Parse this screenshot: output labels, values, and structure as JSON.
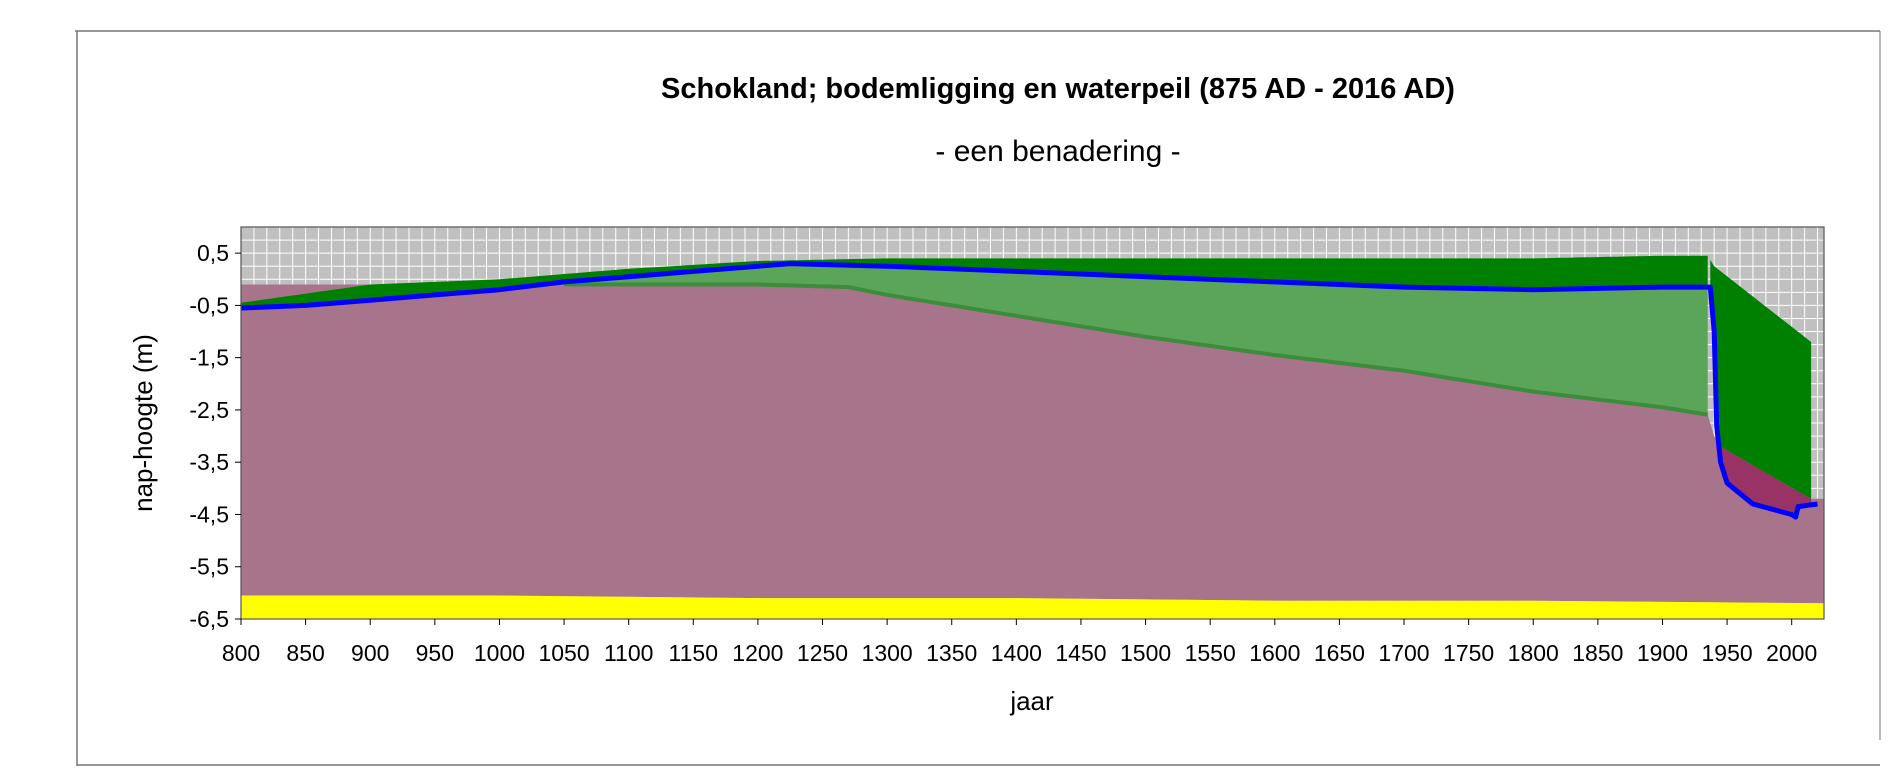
{
  "chart_data": {
    "type": "area",
    "title": "Schokland; bodemligging en waterpeil (875 AD - 2016 AD)",
    "subtitle": "- een benadering -",
    "xlabel": "jaar",
    "ylabel": "nap-hoogte (m)",
    "xlim": [
      800,
      2025
    ],
    "ylim": [
      -6.5,
      1.0
    ],
    "x_ticks": [
      "800",
      "850",
      "900",
      "950",
      "1000",
      "1050",
      "1100",
      "1150",
      "1200",
      "1250",
      "1300",
      "1350",
      "1400",
      "1450",
      "1500",
      "1550",
      "1600",
      "1650",
      "1700",
      "1750",
      "1800",
      "1850",
      "1900",
      "1950",
      "2000"
    ],
    "y_ticks": [
      "0,5",
      "-0,5",
      "-1,5",
      "-2,5",
      "-3,5",
      "-4,5",
      "-5,5",
      "-6,5"
    ],
    "x_tick_values": [
      800,
      850,
      900,
      950,
      1000,
      1050,
      1100,
      1150,
      1200,
      1250,
      1300,
      1350,
      1400,
      1450,
      1500,
      1550,
      1600,
      1650,
      1700,
      1750,
      1800,
      1850,
      1900,
      1950,
      2000
    ],
    "y_tick_values": [
      0.5,
      -0.5,
      -1.5,
      -2.5,
      -3.5,
      -4.5,
      -5.5,
      -6.5
    ],
    "grid": true,
    "legend": "none",
    "colors": {
      "plot_background": "#c0c0c0",
      "grid": "#ffffff",
      "dark_green": "#008000",
      "light_green": "#5aa55a",
      "dark_purple": "#993366",
      "light_purple": "#a8748c",
      "yellow": "#ffff00",
      "blue": "#0000ff"
    },
    "series": [
      {
        "role": "peat top (dark green)",
        "x": [
          800,
          900,
          1000,
          1100,
          1200,
          1300,
          1400,
          1500,
          1600,
          1700,
          1800,
          1900,
          1935,
          1940,
          2015
        ],
        "values": [
          -0.45,
          -0.1,
          0.0,
          0.2,
          0.35,
          0.4,
          0.4,
          0.4,
          0.4,
          0.4,
          0.4,
          0.45,
          0.45,
          0.25,
          -1.2
        ]
      },
      {
        "role": "water level (blue line)",
        "x": [
          800,
          850,
          900,
          950,
          1000,
          1050,
          1100,
          1150,
          1200,
          1225,
          1300,
          1400,
          1500,
          1600,
          1700,
          1800,
          1900,
          1937,
          1940,
          1942,
          1945,
          1950,
          1970,
          2000,
          2003,
          2005,
          2020
        ],
        "values": [
          -0.55,
          -0.5,
          -0.4,
          -0.3,
          -0.2,
          -0.05,
          0.05,
          0.15,
          0.25,
          0.3,
          0.25,
          0.15,
          0.05,
          -0.05,
          -0.15,
          -0.2,
          -0.15,
          -0.15,
          -1.0,
          -2.8,
          -3.5,
          -3.9,
          -4.3,
          -4.5,
          -4.55,
          -4.35,
          -4.3
        ]
      },
      {
        "role": "clay top (light green / purple boundary)",
        "x": [
          800,
          900,
          1000,
          1100,
          1200,
          1270,
          1300,
          1400,
          1500,
          1600,
          1700,
          1800,
          1900,
          1937,
          1940,
          1945,
          2015
        ],
        "values": [
          -0.1,
          -0.1,
          -0.1,
          -0.1,
          -0.1,
          -0.15,
          -0.3,
          -0.7,
          -1.1,
          -1.45,
          -1.75,
          -2.15,
          -2.45,
          -2.6,
          -3.0,
          -3.2,
          -4.2
        ]
      },
      {
        "role": "sand top (yellow)",
        "x": [
          800,
          1000,
          1200,
          1400,
          1600,
          1800,
          2025
        ],
        "values": [
          -6.05,
          -6.05,
          -6.1,
          -6.1,
          -6.15,
          -6.15,
          -6.2
        ]
      }
    ]
  }
}
